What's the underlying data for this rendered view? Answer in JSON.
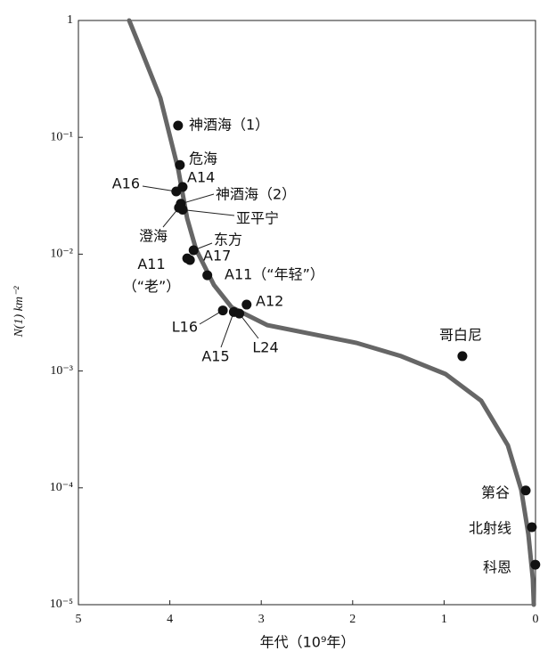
{
  "chart_data": {
    "type": "scatter",
    "x_label": "年代（10⁹年）",
    "y_label": "N(1) km⁻²",
    "xlim": [
      5,
      0
    ],
    "xticks": [
      5,
      4,
      3,
      2,
      1,
      0
    ],
    "ylim": [
      1e-05,
      1
    ],
    "yticks": [
      {
        "value": 1e-05,
        "label": "10⁻⁵"
      },
      {
        "value": 0.0001,
        "label": "10⁻⁴"
      },
      {
        "value": 0.001,
        "label": "10⁻³"
      },
      {
        "value": 0.01,
        "label": "10⁻²"
      },
      {
        "value": 0.1,
        "label": "10⁻¹"
      },
      1
    ],
    "log_y": true,
    "points": {
      "color": "#111111",
      "names": [
        "神酒海（1）",
        "危海",
        "A14",
        "A16",
        "神酒海（2）",
        "亚平宁",
        "澄海",
        "东方",
        "A17",
        "A11\n（“老”）",
        "A11（“年轻”）",
        "A12",
        "L16",
        "A15",
        "L24",
        "哥白尼",
        "第谷",
        "北射线",
        "科恩"
      ],
      "x": [
        3.91,
        3.89,
        3.86,
        3.93,
        3.88,
        3.86,
        3.9,
        3.74,
        3.81,
        3.78,
        3.59,
        3.16,
        3.42,
        3.3,
        3.24,
        0.8,
        0.107,
        0.04,
        0.002
      ],
      "values": [
        0.126,
        0.058,
        0.0376,
        0.0344,
        0.027,
        0.024,
        0.025,
        0.0108,
        0.0092,
        0.0089,
        0.0066,
        0.0037,
        0.0033,
        0.0032,
        0.0031,
        0.00134,
        9.5e-05,
        4.6e-05,
        2.2e-05
      ]
    },
    "curve": {
      "color": "#666666",
      "x": [
        4.444,
        4.298,
        4.103,
        3.908,
        3.811,
        3.713,
        3.518,
        3.324,
        2.934,
        2.446,
        1.959,
        1.472,
        0.984,
        0.595,
        0.302,
        0.156,
        0.078,
        0.029,
        0.019
      ],
      "values": [
        1,
        0.522,
        0.217,
        0.0533,
        0.0203,
        0.011,
        0.00545,
        0.00351,
        0.00247,
        0.00207,
        0.00174,
        0.00134,
        0.000942,
        0.000556,
        0.000231,
        9.6e-05,
        4e-05,
        1.66e-05,
        1e-05
      ]
    }
  }
}
